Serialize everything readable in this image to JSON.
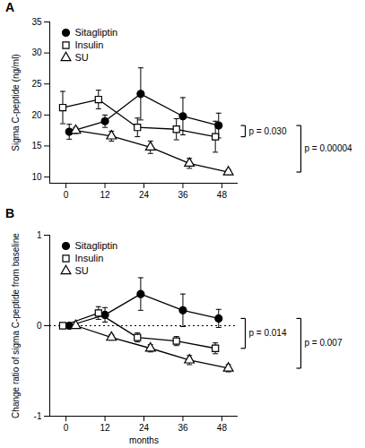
{
  "chart_data": [
    {
      "type": "line",
      "title": "A",
      "y_label": "Sigma C-peptide (ng/ml)",
      "xlim": [
        -5,
        53
      ],
      "xticks": [
        0,
        12,
        24,
        36,
        48
      ],
      "ylim": [
        9,
        35
      ],
      "yticks": [
        10,
        15,
        20,
        25,
        30,
        35
      ],
      "legend": "upper left",
      "series": [
        {
          "name": "Sitagliptin",
          "color": "#000000",
          "marker": "circle",
          "x": [
            1,
            12,
            23,
            36,
            47
          ],
          "values": [
            17.3,
            19.0,
            23.4,
            19.8,
            18.3
          ],
          "errors": [
            1.2,
            1.0,
            4.2,
            3.0,
            2.0
          ]
        },
        {
          "name": "Insulin",
          "color": "#000000",
          "marker": "open square",
          "x": [
            -1,
            10,
            22,
            34,
            46
          ],
          "values": [
            21.2,
            22.5,
            18.0,
            17.7,
            16.5
          ],
          "errors": [
            2.6,
            1.5,
            1.5,
            1.7,
            2.5
          ]
        },
        {
          "name": "SU",
          "color": "#000000",
          "marker": "open triangle",
          "x": [
            3,
            14,
            26,
            38,
            50
          ],
          "values": [
            17.5,
            16.6,
            14.8,
            12.2,
            10.8
          ],
          "errors": [
            0.5,
            0.8,
            1.0,
            0.8,
            0.4
          ]
        }
      ],
      "annotations": [
        {
          "text": "p = 0.030",
          "between": [
            "Sitagliptin",
            "Insulin"
          ]
        },
        {
          "text": "p = 0.00004",
          "between": [
            "Sitagliptin",
            "SU"
          ]
        }
      ]
    },
    {
      "type": "line",
      "title": "B",
      "x_label": "months",
      "y_label": "Change ratio of sigma C-peptide from baseline",
      "xlim": [
        -5,
        53
      ],
      "xticks": [
        0,
        12,
        24,
        36,
        48
      ],
      "ylim": [
        -1,
        1
      ],
      "yticks": [
        -1,
        0,
        1
      ],
      "legend": "upper left",
      "hline": {
        "value": 0,
        "line_style": "dotted"
      },
      "series": [
        {
          "name": "Sitagliptin",
          "color": "#000000",
          "marker": "circle",
          "x": [
            1,
            12,
            23,
            36,
            47
          ],
          "values": [
            0,
            0.12,
            0.35,
            0.17,
            0.08
          ],
          "errors": [
            0,
            0.08,
            0.18,
            0.18,
            0.1
          ]
        },
        {
          "name": "Insulin",
          "color": "#000000",
          "marker": "open square",
          "x": [
            -1,
            10,
            22,
            34,
            46
          ],
          "values": [
            0,
            0.14,
            -0.13,
            -0.17,
            -0.25
          ],
          "errors": [
            0,
            0.07,
            0.05,
            0.05,
            0.06
          ]
        },
        {
          "name": "SU",
          "color": "#000000",
          "marker": "open triangle",
          "x": [
            3,
            14,
            26,
            38,
            50
          ],
          "values": [
            0,
            -0.13,
            -0.25,
            -0.38,
            -0.47
          ],
          "errors": [
            0,
            0.03,
            0.04,
            0.05,
            0.04
          ]
        }
      ],
      "annotations": [
        {
          "text": "p = 0.014",
          "between": [
            "Sitagliptin",
            "Insulin"
          ]
        },
        {
          "text": "p = 0.007",
          "between": [
            "Sitagliptin",
            "SU"
          ]
        }
      ]
    }
  ]
}
